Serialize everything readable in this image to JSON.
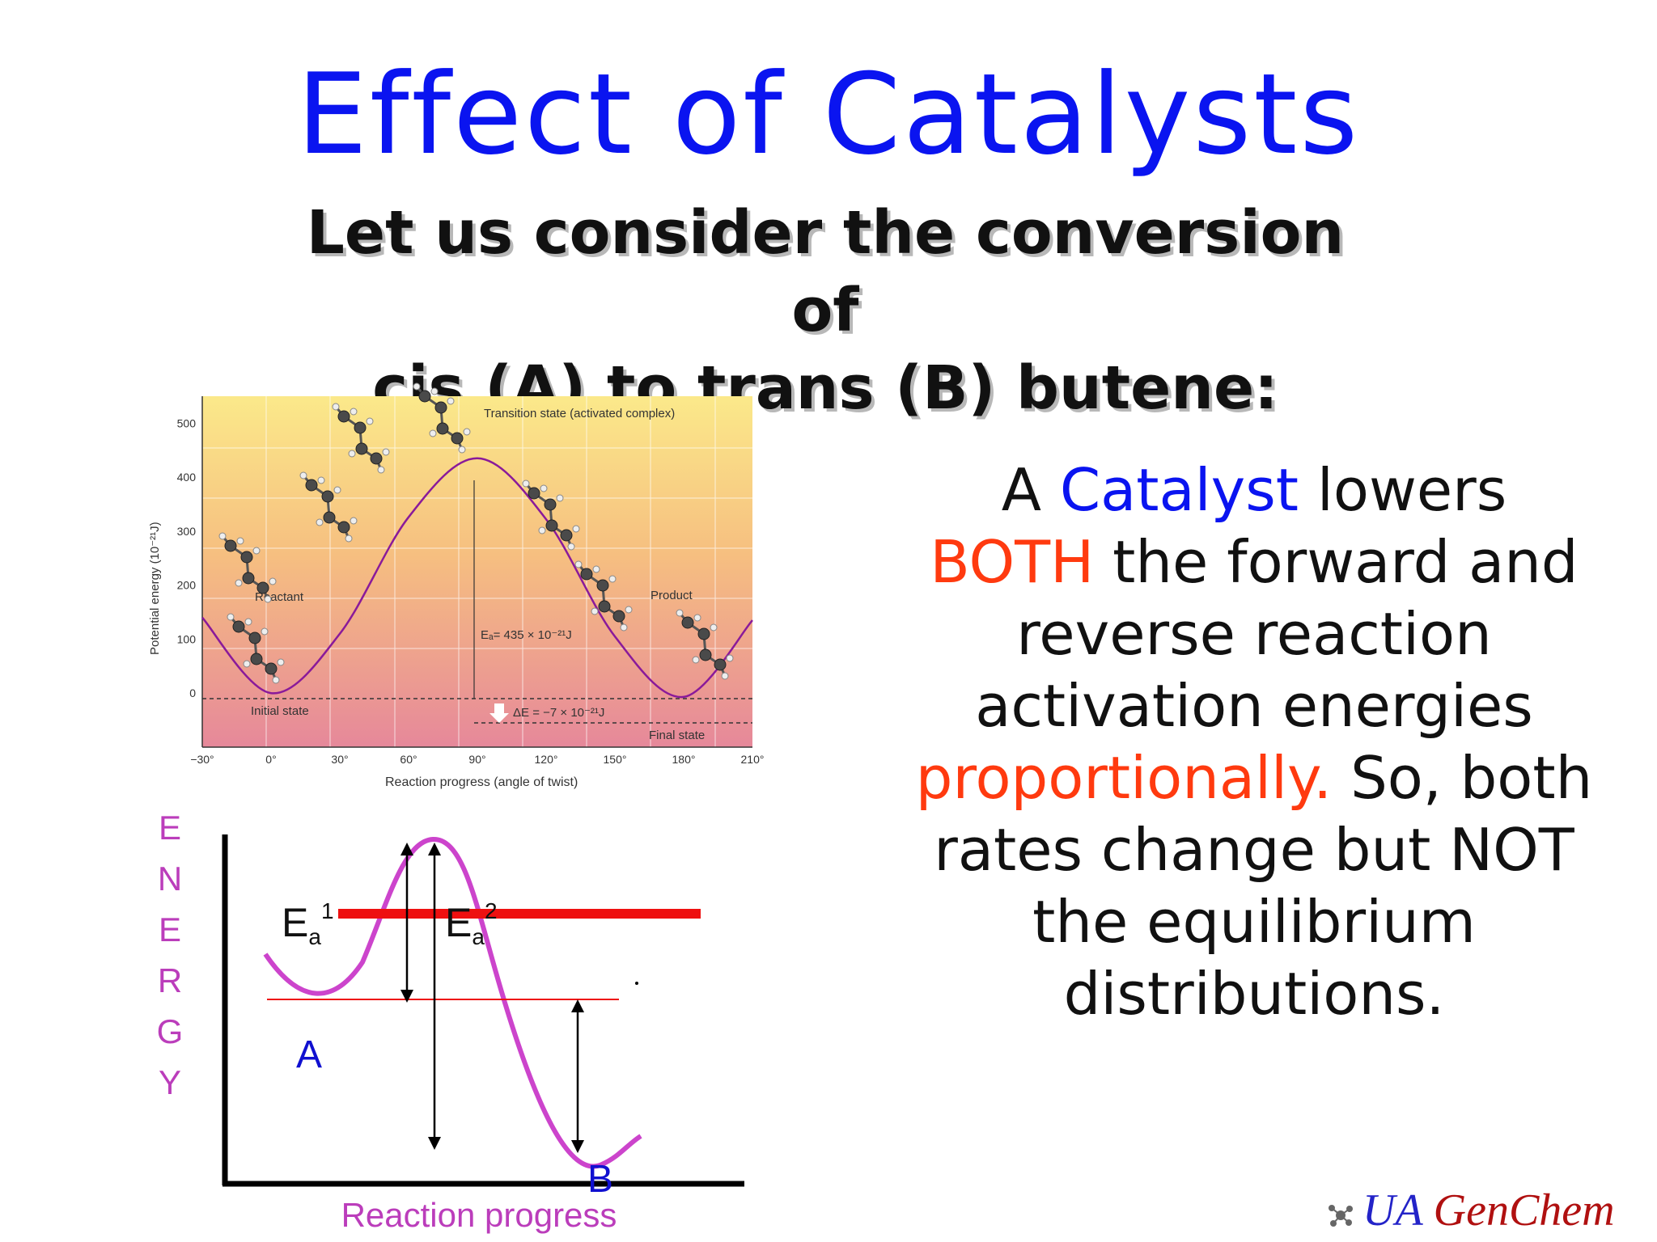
{
  "title": "Effect of Catalysts",
  "subtitle": {
    "line1": "Let us consider the conversion of",
    "line2": "cis (A) to trans (B) butene:"
  },
  "right_text": {
    "p1": "A ",
    "p2": "Catalyst",
    "p3": " lowers",
    "p4": "BOTH",
    "p5": " the forward and reverse reaction activation energies ",
    "p6": "proportionally.",
    "p7": " So, both rates change but NOT the equilibrium distributions."
  },
  "colors": {
    "title": "#0a14f0",
    "highlight_red": "#ff3a0f",
    "curve_purple": "#cc44cc",
    "bar_red": "#ee1010"
  },
  "top_chart": {
    "ylabel": "Potential energy (10⁻²¹J)",
    "xlabel": "Reaction progress (angle of twist)",
    "yticks": [
      "500",
      "400",
      "300",
      "200",
      "100",
      "0"
    ],
    "xticks": [
      "−30°",
      "0°",
      "30°",
      "60°",
      "90°",
      "120°",
      "150°",
      "180°",
      "210°"
    ],
    "labels": {
      "transition": "Transition state (activated complex)",
      "reactant": "Reactant",
      "product": "Product",
      "initial": "Initial state",
      "final": "Final state",
      "ea": "Eₐ= 435 × 10⁻²¹J",
      "de": "ΔE = −7 × 10⁻²¹J"
    },
    "curve_icon": "molecule-ball-stick-icon"
  },
  "chart_data": {
    "type": "line",
    "title": "",
    "xlabel": "Reaction progress (angle of twist)",
    "ylabel": "Potential energy (10⁻²¹J)",
    "xlim": [
      -30,
      210
    ],
    "ylim": [
      -100,
      550
    ],
    "series": [
      {
        "x": [
          -30,
          0,
          30,
          60,
          90,
          120,
          150,
          180,
          210
        ],
        "y": [
          140,
          0,
          110,
          326,
          435,
          322,
          105,
          -7,
          135
        ]
      }
    ],
    "annotations": [
      "Transition state (activated complex)",
      "Reactant",
      "Product",
      "Initial state",
      "Final state",
      "Eₐ= 435 × 10⁻²¹J",
      "ΔE = −7 × 10⁻²¹J"
    ]
  },
  "bottom_diagram": {
    "energy_letters": [
      "E",
      "N",
      "E",
      "R",
      "G",
      "Y"
    ],
    "ea1": "E",
    "ea1_sub": "a",
    "ea1_sup": "1",
    "ea2": "E",
    "ea2_sub": "a",
    "ea2_sup": "2",
    "label_a": "A",
    "label_b": "B",
    "xlabel": "Reaction progress"
  },
  "brand": {
    "ua": "UA",
    "genchem": "GenChem",
    "icon": "molecule-logo-icon"
  }
}
